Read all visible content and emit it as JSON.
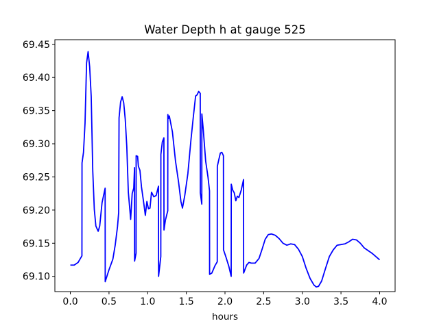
{
  "chart_data": {
    "type": "line",
    "title": "Water Depth h at gauge 525",
    "xlabel": "hours",
    "ylabel": "",
    "xlim": [
      -0.2,
      4.2
    ],
    "ylim": [
      69.077,
      69.457
    ],
    "grid": false,
    "xticks": [
      0.0,
      0.5,
      1.0,
      1.5,
      2.0,
      2.5,
      3.0,
      3.5,
      4.0
    ],
    "xtick_labels": [
      "0.0",
      "0.5",
      "1.0",
      "1.5",
      "2.0",
      "2.5",
      "3.0",
      "3.5",
      "4.0"
    ],
    "yticks": [
      69.1,
      69.15,
      69.2,
      69.25,
      69.3,
      69.35,
      69.4,
      69.45
    ],
    "ytick_labels": [
      "69.10",
      "69.15",
      "69.20",
      "69.25",
      "69.30",
      "69.35",
      "69.40",
      "69.45"
    ],
    "series": [
      {
        "color": "#0000ff",
        "points": [
          [
            0.0,
            69.117
          ],
          [
            0.05,
            69.117
          ],
          [
            0.1,
            69.121
          ],
          [
            0.15,
            69.131
          ],
          [
            0.151,
            69.271
          ],
          [
            0.17,
            69.287
          ],
          [
            0.19,
            69.331
          ],
          [
            0.21,
            69.422
          ],
          [
            0.23,
            69.439
          ],
          [
            0.25,
            69.416
          ],
          [
            0.27,
            69.371
          ],
          [
            0.29,
            69.259
          ],
          [
            0.31,
            69.201
          ],
          [
            0.33,
            69.176
          ],
          [
            0.36,
            69.168
          ],
          [
            0.38,
            69.176
          ],
          [
            0.41,
            69.211
          ],
          [
            0.45,
            69.233
          ],
          [
            0.451,
            69.092
          ],
          [
            0.5,
            69.11
          ],
          [
            0.55,
            69.126
          ],
          [
            0.58,
            69.147
          ],
          [
            0.61,
            69.175
          ],
          [
            0.625,
            69.196
          ],
          [
            0.63,
            69.339
          ],
          [
            0.65,
            69.363
          ],
          [
            0.67,
            69.371
          ],
          [
            0.69,
            69.362
          ],
          [
            0.71,
            69.337
          ],
          [
            0.73,
            69.296
          ],
          [
            0.75,
            69.227
          ],
          [
            0.77,
            69.2
          ],
          [
            0.78,
            69.186
          ],
          [
            0.8,
            69.225
          ],
          [
            0.82,
            69.233
          ],
          [
            0.83,
            69.264
          ],
          [
            0.831,
            69.123
          ],
          [
            0.85,
            69.135
          ],
          [
            0.851,
            69.282
          ],
          [
            0.87,
            69.281
          ],
          [
            0.88,
            69.266
          ],
          [
            0.9,
            69.26
          ],
          [
            0.92,
            69.235
          ],
          [
            0.95,
            69.21
          ],
          [
            0.97,
            69.192
          ],
          [
            0.99,
            69.213
          ],
          [
            1.01,
            69.202
          ],
          [
            1.03,
            69.203
          ],
          [
            1.05,
            69.227
          ],
          [
            1.08,
            69.22
          ],
          [
            1.11,
            69.222
          ],
          [
            1.14,
            69.236
          ],
          [
            1.141,
            69.1
          ],
          [
            1.17,
            69.13
          ],
          [
            1.171,
            69.284
          ],
          [
            1.19,
            69.303
          ],
          [
            1.21,
            69.309
          ],
          [
            1.211,
            69.17
          ],
          [
            1.23,
            69.185
          ],
          [
            1.26,
            69.199
          ],
          [
            1.261,
            69.344
          ],
          [
            1.27,
            69.338
          ],
          [
            1.28,
            69.342
          ],
          [
            1.32,
            69.318
          ],
          [
            1.36,
            69.274
          ],
          [
            1.4,
            69.242
          ],
          [
            1.43,
            69.213
          ],
          [
            1.45,
            69.203
          ],
          [
            1.48,
            69.222
          ],
          [
            1.52,
            69.255
          ],
          [
            1.56,
            69.306
          ],
          [
            1.59,
            69.34
          ],
          [
            1.62,
            69.372
          ],
          [
            1.64,
            69.374
          ],
          [
            1.66,
            69.379
          ],
          [
            1.68,
            69.376
          ],
          [
            1.681,
            69.226
          ],
          [
            1.7,
            69.209
          ],
          [
            1.701,
            69.345
          ],
          [
            1.72,
            69.32
          ],
          [
            1.75,
            69.274
          ],
          [
            1.78,
            69.25
          ],
          [
            1.8,
            69.229
          ],
          [
            1.801,
            69.103
          ],
          [
            1.83,
            69.105
          ],
          [
            1.87,
            69.116
          ],
          [
            1.9,
            69.122
          ],
          [
            1.901,
            69.266
          ],
          [
            1.92,
            69.276
          ],
          [
            1.94,
            69.286
          ],
          [
            1.96,
            69.287
          ],
          [
            1.98,
            69.282
          ],
          [
            1.981,
            69.14
          ],
          [
            2.01,
            69.13
          ],
          [
            2.05,
            69.115
          ],
          [
            2.08,
            69.1
          ],
          [
            2.081,
            69.239
          ],
          [
            2.1,
            69.23
          ],
          [
            2.12,
            69.226
          ],
          [
            2.14,
            69.214
          ],
          [
            2.16,
            69.221
          ],
          [
            2.18,
            69.219
          ],
          [
            2.21,
            69.23
          ],
          [
            2.24,
            69.246
          ],
          [
            2.241,
            69.105
          ],
          [
            2.28,
            69.117
          ],
          [
            2.31,
            69.121
          ],
          [
            2.34,
            69.12
          ],
          [
            2.39,
            69.12
          ],
          [
            2.44,
            69.127
          ],
          [
            2.48,
            69.141
          ],
          [
            2.52,
            69.156
          ],
          [
            2.56,
            69.163
          ],
          [
            2.6,
            69.164
          ],
          [
            2.65,
            69.162
          ],
          [
            2.7,
            69.157
          ],
          [
            2.75,
            69.15
          ],
          [
            2.8,
            69.147
          ],
          [
            2.85,
            69.149
          ],
          [
            2.9,
            69.148
          ],
          [
            2.95,
            69.141
          ],
          [
            3.0,
            69.13
          ],
          [
            3.05,
            69.112
          ],
          [
            3.1,
            69.097
          ],
          [
            3.15,
            69.087
          ],
          [
            3.18,
            69.084
          ],
          [
            3.21,
            69.085
          ],
          [
            3.25,
            69.093
          ],
          [
            3.3,
            69.112
          ],
          [
            3.35,
            69.13
          ],
          [
            3.4,
            69.14
          ],
          [
            3.45,
            69.147
          ],
          [
            3.5,
            69.148
          ],
          [
            3.55,
            69.149
          ],
          [
            3.6,
            69.152
          ],
          [
            3.65,
            69.156
          ],
          [
            3.7,
            69.155
          ],
          [
            3.75,
            69.15
          ],
          [
            3.8,
            69.143
          ],
          [
            3.85,
            69.139
          ],
          [
            3.9,
            69.135
          ],
          [
            3.95,
            69.13
          ],
          [
            4.0,
            69.125
          ]
        ]
      }
    ]
  }
}
